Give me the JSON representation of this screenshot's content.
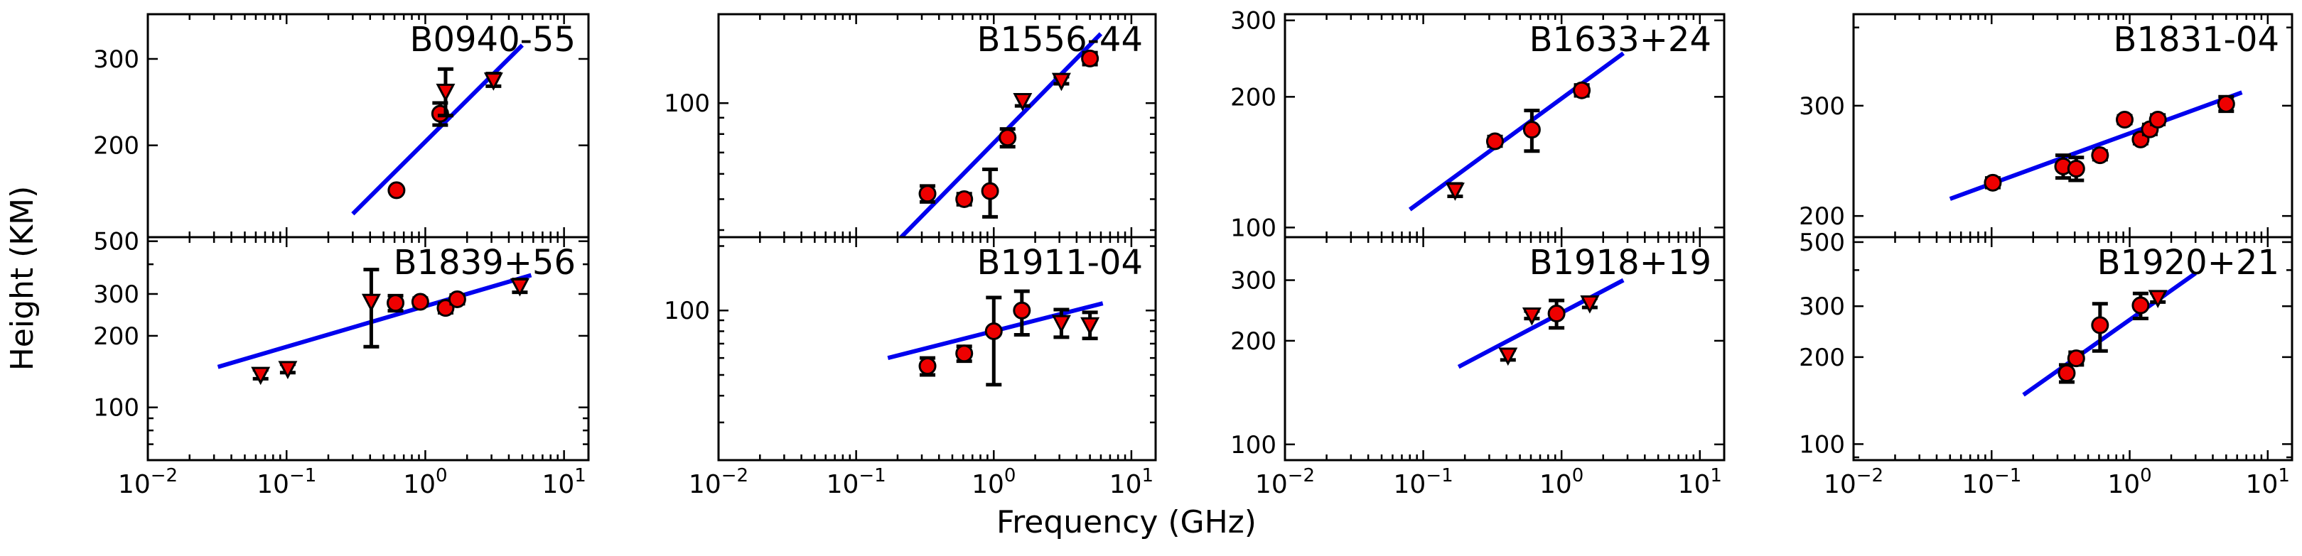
{
  "figure": {
    "ylabel": "Height (KM)",
    "xlabel": "Frequency (GHz)",
    "colors": {
      "fit": "#0000ee",
      "marker": "#ee0000",
      "axes": "#000000"
    }
  },
  "chart_data": [
    {
      "type": "scatter",
      "title": "B0940-55",
      "xscale": "log",
      "yscale": "log",
      "xlim": [
        0.01,
        15
      ],
      "ylim": [
        130,
        370
      ],
      "yticks": [
        200,
        300
      ],
      "ytick_labels": [
        "200",
        "300"
      ],
      "xticks": [],
      "xtick_labels": [],
      "points": [
        {
          "x": 0.62,
          "y": 162,
          "err": 0,
          "marker": "circle"
        },
        {
          "x": 1.28,
          "y": 232,
          "err": 12,
          "marker": "circle"
        },
        {
          "x": 1.4,
          "y": 258,
          "err": 28,
          "marker": "triangle"
        },
        {
          "x": 3.1,
          "y": 272,
          "err": 8,
          "marker": "triangle"
        }
      ],
      "fit": {
        "x": [
          0.3,
          5.0
        ],
        "y": [
          145,
          320
        ]
      }
    },
    {
      "type": "scatter",
      "title": "B1839+56",
      "xscale": "log",
      "yscale": "log",
      "xlim": [
        0.01,
        15
      ],
      "ylim": [
        60,
        520
      ],
      "yticks": [
        100,
        200,
        300,
        500
      ],
      "ytick_labels": [
        "100",
        "200",
        "300",
        "500"
      ],
      "xticks": [
        0.01,
        0.1,
        1,
        10
      ],
      "xtick_labels": [
        "10⁻²",
        "10⁻¹",
        "10⁰",
        "10¹"
      ],
      "points": [
        {
          "x": 0.065,
          "y": 138,
          "err": 6,
          "marker": "triangle"
        },
        {
          "x": 0.102,
          "y": 146,
          "err": 6,
          "marker": "triangle"
        },
        {
          "x": 0.408,
          "y": 280,
          "err": 100,
          "marker": "triangle"
        },
        {
          "x": 0.61,
          "y": 275,
          "err": 20,
          "marker": "circle"
        },
        {
          "x": 0.92,
          "y": 278,
          "err": 10,
          "marker": "circle"
        },
        {
          "x": 1.4,
          "y": 262,
          "err": 12,
          "marker": "circle"
        },
        {
          "x": 1.7,
          "y": 285,
          "err": 12,
          "marker": "circle"
        },
        {
          "x": 4.8,
          "y": 325,
          "err": 20,
          "marker": "triangle"
        }
      ],
      "fit": {
        "x": [
          0.032,
          5.8
        ],
        "y": [
          148,
          360
        ]
      }
    },
    {
      "type": "scatter",
      "title": "B1556-44",
      "xscale": "log",
      "yscale": "log",
      "xlim": [
        0.01,
        15
      ],
      "ylim": [
        38,
        190
      ],
      "yticks": [
        100
      ],
      "ytick_labels": [
        "100"
      ],
      "xticks": [],
      "xtick_labels": [],
      "points": [
        {
          "x": 0.33,
          "y": 52,
          "err": 3,
          "marker": "circle"
        },
        {
          "x": 0.61,
          "y": 50,
          "err": 2,
          "marker": "circle"
        },
        {
          "x": 0.94,
          "y": 53,
          "err": 9,
          "marker": "circle"
        },
        {
          "x": 1.26,
          "y": 78,
          "err": 5,
          "marker": "circle"
        },
        {
          "x": 1.62,
          "y": 102,
          "err": 4,
          "marker": "triangle"
        },
        {
          "x": 3.1,
          "y": 118,
          "err": 3,
          "marker": "triangle"
        },
        {
          "x": 5.0,
          "y": 138,
          "err": 6,
          "marker": "circle"
        }
      ],
      "fit": {
        "x": [
          0.2,
          6.0
        ],
        "y": [
          37,
          165
        ]
      }
    },
    {
      "type": "scatter",
      "title": "B1911-04",
      "xscale": "log",
      "yscale": "log",
      "xlim": [
        0.01,
        15
      ],
      "ylim": [
        20,
        220
      ],
      "yticks": [
        100
      ],
      "ytick_labels": [
        "100"
      ],
      "xticks": [
        0.01,
        0.1,
        1,
        10
      ],
      "xtick_labels": [
        "10⁻²",
        "10⁻¹",
        "10⁰",
        "10¹"
      ],
      "points": [
        {
          "x": 0.33,
          "y": 55,
          "err": 5,
          "marker": "circle"
        },
        {
          "x": 0.61,
          "y": 63,
          "err": 5,
          "marker": "circle"
        },
        {
          "x": 1.0,
          "y": 80,
          "err": 35,
          "marker": "circle"
        },
        {
          "x": 1.6,
          "y": 100,
          "err": 23,
          "marker": "circle"
        },
        {
          "x": 3.1,
          "y": 88,
          "err": 13,
          "marker": "triangle"
        },
        {
          "x": 5.0,
          "y": 86,
          "err": 12,
          "marker": "triangle"
        }
      ],
      "fit": {
        "x": [
          0.17,
          6.2
        ],
        "y": [
          60,
          108
        ]
      }
    },
    {
      "type": "scatter",
      "title": "B1633+24",
      "xscale": "log",
      "yscale": "log",
      "xlim": [
        0.01,
        15
      ],
      "ylim": [
        95,
        310
      ],
      "yticks": [
        100,
        200,
        300
      ],
      "ytick_labels": [
        "100",
        "200",
        "300"
      ],
      "xticks": [],
      "xtick_labels": [],
      "points": [
        {
          "x": 0.17,
          "y": 122,
          "err": 4,
          "marker": "triangle"
        },
        {
          "x": 0.33,
          "y": 158,
          "err": 4,
          "marker": "circle"
        },
        {
          "x": 0.61,
          "y": 168,
          "err": 18,
          "marker": "circle"
        },
        {
          "x": 1.4,
          "y": 207,
          "err": 6,
          "marker": "circle"
        }
      ],
      "fit": {
        "x": [
          0.08,
          2.8
        ],
        "y": [
          110,
          252
        ]
      }
    },
    {
      "type": "scatter",
      "title": "B1918+19",
      "xscale": "log",
      "yscale": "log",
      "xlim": [
        0.01,
        15
      ],
      "ylim": [
        90,
        400
      ],
      "yticks": [
        100,
        200,
        300
      ],
      "ytick_labels": [
        "100",
        "200",
        "300"
      ],
      "xticks": [
        0.01,
        0.1,
        1,
        10
      ],
      "xtick_labels": [
        "10⁻²",
        "10⁻¹",
        "10⁰",
        "10¹"
      ],
      "points": [
        {
          "x": 0.41,
          "y": 182,
          "err": 6,
          "marker": "triangle"
        },
        {
          "x": 0.61,
          "y": 238,
          "err": 6,
          "marker": "triangle"
        },
        {
          "x": 0.92,
          "y": 240,
          "err": 22,
          "marker": "circle"
        },
        {
          "x": 1.6,
          "y": 258,
          "err": 8,
          "marker": "triangle"
        }
      ],
      "fit": {
        "x": [
          0.18,
          2.8
        ],
        "y": [
          168,
          300
        ]
      }
    },
    {
      "type": "scatter",
      "title": "B1831-04",
      "xscale": "log",
      "yscale": "log",
      "xlim": [
        0.01,
        15
      ],
      "ylim": [
        185,
        420
      ],
      "yticks": [
        200,
        300
      ],
      "ytick_labels": [
        "200",
        "300"
      ],
      "xticks": [],
      "xtick_labels": [],
      "points": [
        {
          "x": 0.102,
          "y": 226,
          "err": 4,
          "marker": "circle"
        },
        {
          "x": 0.33,
          "y": 240,
          "err": 10,
          "marker": "circle"
        },
        {
          "x": 0.41,
          "y": 238,
          "err": 10,
          "marker": "circle"
        },
        {
          "x": 0.61,
          "y": 250,
          "err": 4,
          "marker": "circle"
        },
        {
          "x": 0.92,
          "y": 285,
          "err": 4,
          "marker": "circle"
        },
        {
          "x": 1.2,
          "y": 265,
          "err": 4,
          "marker": "circle"
        },
        {
          "x": 1.4,
          "y": 275,
          "err": 5,
          "marker": "circle"
        },
        {
          "x": 1.6,
          "y": 285,
          "err": 5,
          "marker": "circle"
        },
        {
          "x": 5.0,
          "y": 302,
          "err": 8,
          "marker": "circle"
        }
      ],
      "fit": {
        "x": [
          0.05,
          6.5
        ],
        "y": [
          213,
          315
        ]
      }
    },
    {
      "type": "scatter",
      "title": "B1920+21",
      "xscale": "log",
      "yscale": "log",
      "xlim": [
        0.01,
        15
      ],
      "ylim": [
        88,
        520
      ],
      "yticks": [
        100,
        200,
        300,
        500
      ],
      "ytick_labels": [
        "100",
        "200",
        "300",
        "500"
      ],
      "xticks": [
        0.01,
        0.1,
        1,
        10
      ],
      "xtick_labels": [
        "10⁻²",
        "10⁻¹",
        "10⁰",
        "10¹"
      ],
      "points": [
        {
          "x": 0.35,
          "y": 176,
          "err": 12,
          "marker": "circle"
        },
        {
          "x": 0.41,
          "y": 198,
          "err": 10,
          "marker": "circle"
        },
        {
          "x": 0.61,
          "y": 258,
          "err": 48,
          "marker": "circle"
        },
        {
          "x": 1.2,
          "y": 302,
          "err": 30,
          "marker": "circle"
        },
        {
          "x": 1.6,
          "y": 322,
          "err": 12,
          "marker": "triangle"
        }
      ],
      "fit": {
        "x": [
          0.17,
          3.0
        ],
        "y": [
          148,
          390
        ]
      }
    }
  ]
}
